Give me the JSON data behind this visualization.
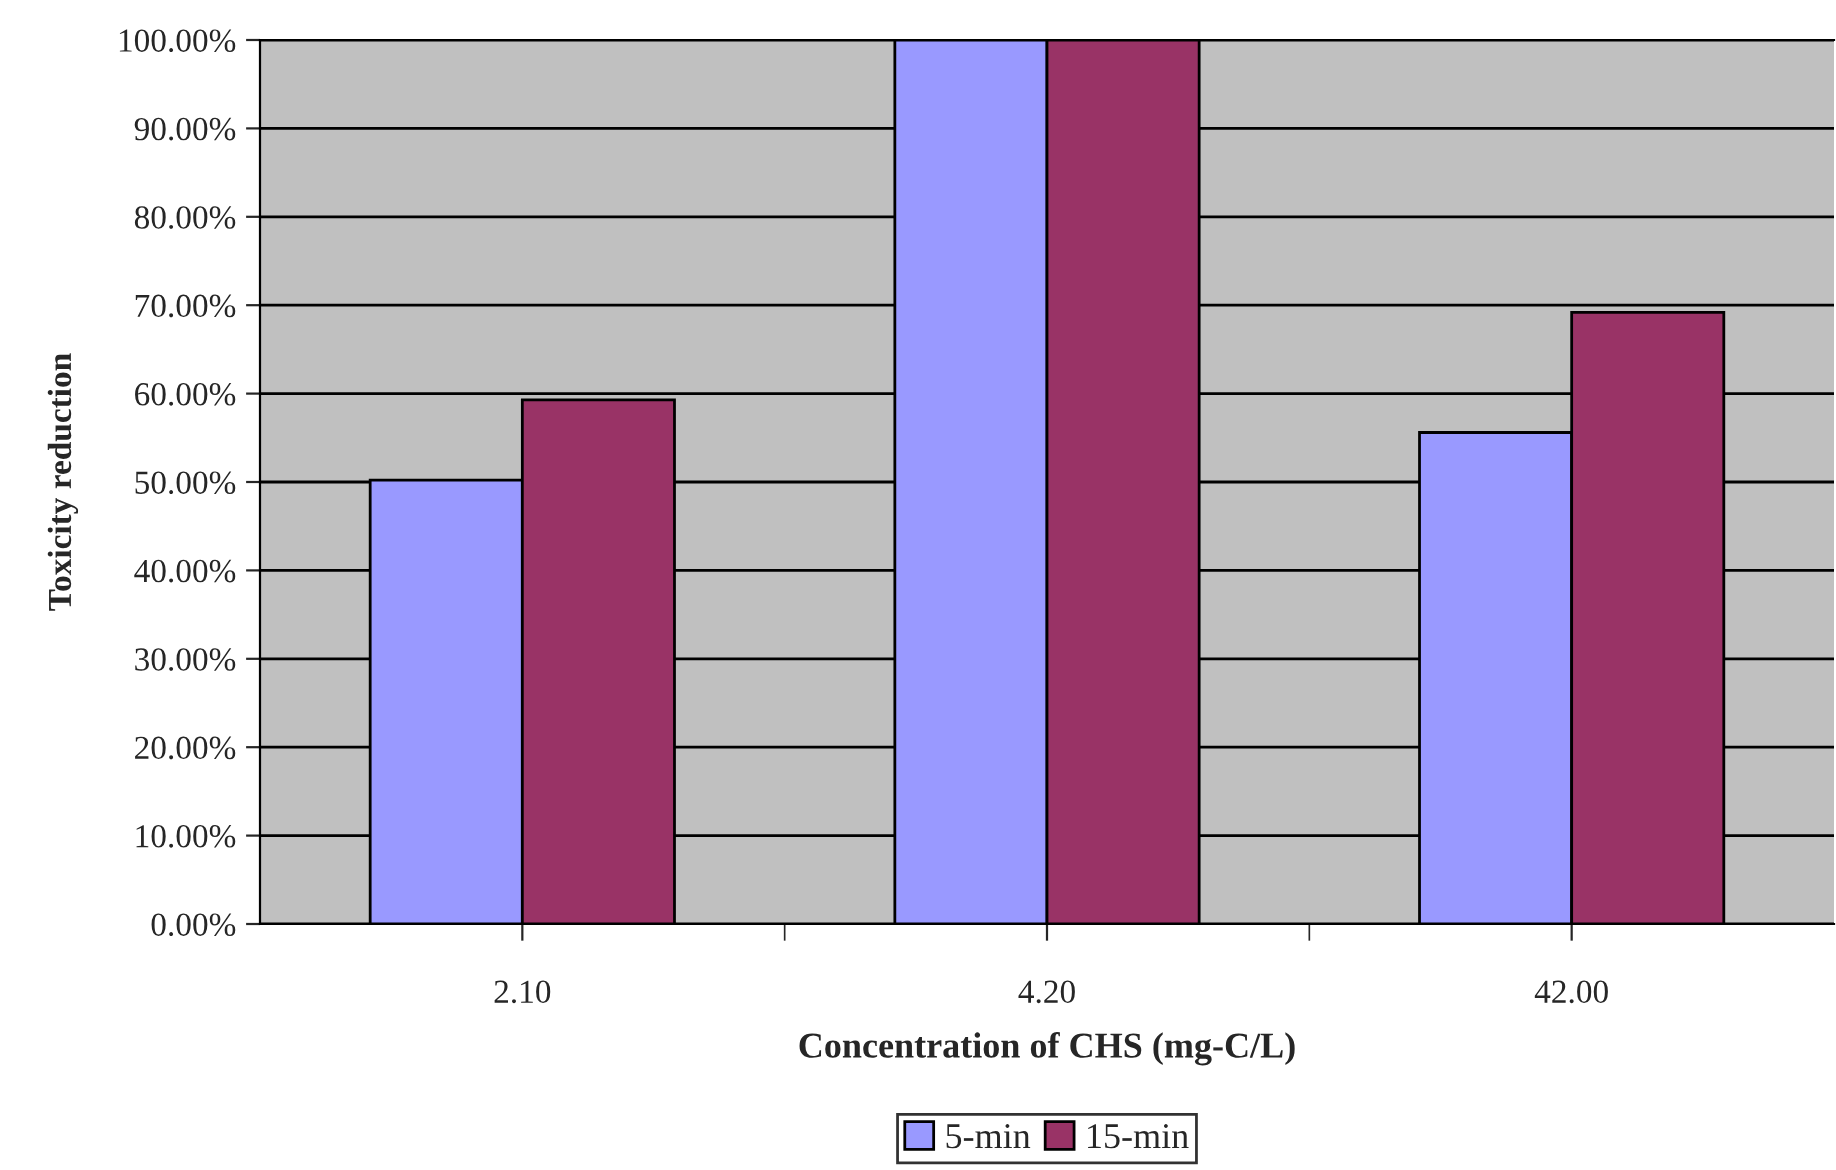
{
  "chart_data": {
    "type": "bar",
    "xlabel": "Concentration of CHS (mg-C/L)",
    "ylabel": "Toxicity reduction",
    "categories": [
      "2.10",
      "4.20",
      "42.00"
    ],
    "series": [
      {
        "name": "5-min",
        "color": "#9999ff",
        "values": [
          50.2,
          100,
          55.6
        ]
      },
      {
        "name": "15-min",
        "color": "#993366",
        "values": [
          59.3,
          100,
          69.2
        ]
      }
    ],
    "ylim": [
      0,
      100
    ],
    "yticks": [
      {
        "value": 0,
        "label": "0.00%"
      },
      {
        "value": 10,
        "label": "10.00%"
      },
      {
        "value": 20,
        "label": "20.00%"
      },
      {
        "value": 30,
        "label": "30.00%"
      },
      {
        "value": 40,
        "label": "40.00%"
      },
      {
        "value": 50,
        "label": "50.00%"
      },
      {
        "value": 60,
        "label": "60.00%"
      },
      {
        "value": 70,
        "label": "70.00%"
      },
      {
        "value": 80,
        "label": "80.00%"
      },
      {
        "value": 90,
        "label": "90.00%"
      },
      {
        "value": 100,
        "label": "100.00%"
      }
    ],
    "grid": "y",
    "legend": "bottom"
  }
}
